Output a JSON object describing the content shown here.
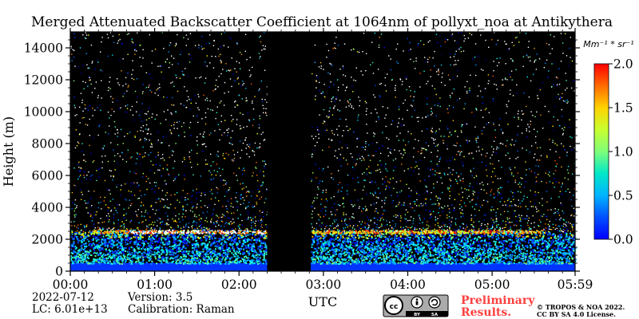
{
  "chart_data": {
    "type": "heatmap",
    "title": "Merged Attenuated Backscatter Coefficient at 1064nm of pollyxt_noa at Antikythera",
    "xlabel": "UTC",
    "ylabel": "Height (m)",
    "x_ticks": [
      "00:00",
      "01:00",
      "02:00",
      "03:00",
      "04:00",
      "05:00",
      "05:59"
    ],
    "x_range_minutes": [
      0,
      359
    ],
    "y_ticks": [
      0,
      2000,
      4000,
      6000,
      8000,
      10000,
      12000,
      14000
    ],
    "ylim": [
      0,
      15000
    ],
    "colorbar": {
      "unit": "Mm⁻¹ * sr⁻¹",
      "ticks": [
        "0.0",
        "0.5",
        "1.0",
        "1.5",
        "2.0"
      ],
      "range": [
        0,
        2.0
      ],
      "colormap": "jet"
    },
    "data_gap_minutes": [
      140,
      171
    ],
    "layers": [
      {
        "name": "surface",
        "height_range_m": [
          0,
          500
        ],
        "value": 0.35
      },
      {
        "name": "boundary-layer",
        "height_range_m": [
          500,
          2500
        ],
        "value": 0.6
      },
      {
        "name": "layer-top",
        "height_range_m": [
          2400,
          2600
        ],
        "value": 2.0
      },
      {
        "name": "noise",
        "height_range_m": [
          2500,
          15000
        ],
        "value": 0.8
      }
    ]
  },
  "footer": {
    "date": "2022-07-12",
    "lc": "LC: 6.01e+13",
    "version": "Version: 3.5",
    "calibration": "Calibration: Raman",
    "preliminary_line1": "Preliminary",
    "preliminary_line2": "Results.",
    "copyright_line1": "© TROPOS & NOA 2022.",
    "copyright_line2": "CC BY SA 4.0 License.",
    "license_badge": "cc-by-sa-icon"
  }
}
